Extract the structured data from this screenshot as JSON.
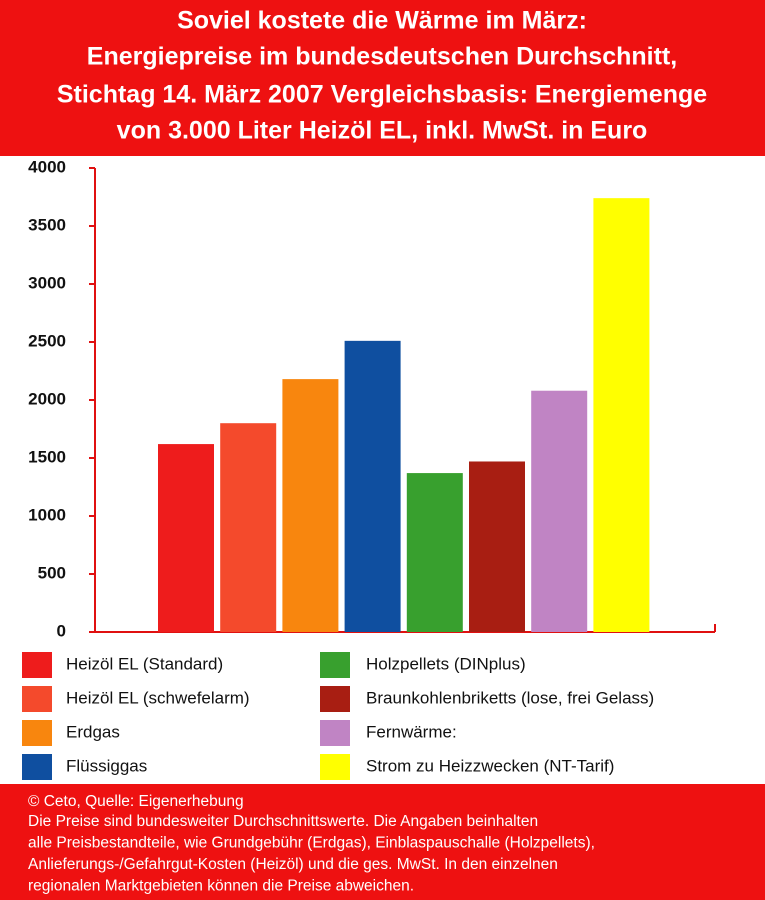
{
  "chart_data": {
    "type": "bar",
    "title": [
      "Soviel kostete die Wärme im März:",
      "Energiepreise im bundesdeutschen Durchschnitt,",
      "Stichtag 14. März 2007 Vergleichsbasis: Energiemenge",
      "von 3.000 Liter Heizöl EL, inkl. MwSt. in Euro"
    ],
    "categories": [
      "Heizöl EL (Standard)",
      "Heizöl EL (schwefelarm)",
      "Erdgas",
      "Flüssiggas",
      "Holzpellets (DINplus)",
      "Braunkohlenbriketts (lose, frei Gelass)",
      "Fernwärme:",
      "Strom zu Heizzwecken (NT-Tarif)"
    ],
    "values": [
      1620,
      1800,
      2180,
      2510,
      1370,
      1470,
      2080,
      3740
    ],
    "colors": [
      "#ee1c1c",
      "#f44a2c",
      "#f8860e",
      "#0f4fa0",
      "#38a02e",
      "#a81e12",
      "#c084c4",
      "#ffff00"
    ],
    "ylim": [
      0,
      4000
    ],
    "yticks": [
      0,
      500,
      1000,
      1500,
      2000,
      2500,
      3000,
      3500,
      4000
    ],
    "source": "© Ceto, Quelle: Eigenerhebung",
    "note": [
      "Die Preise sind bundesweiter Durchschnittswerte. Die Angaben beinhalten",
      "alle Preisbestandteile, wie Grundgebühr (Erdgas), Einblaspauschalle (Holzpellets),",
      "Anlieferungs-/Gefahrgut-Kosten (Heizöl) und die ges. MwSt. In den einzelnen",
      "regionalen Marktgebieten können die Preise abweichen."
    ]
  }
}
